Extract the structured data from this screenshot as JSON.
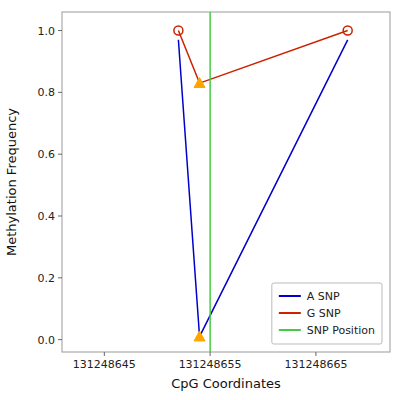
{
  "chart_data": {
    "type": "line",
    "xlabel": "CpG Coordinates",
    "ylabel": "Methylation Frequency",
    "x": [
      131248652,
      131248654,
      131248668
    ],
    "series": [
      {
        "name": "A SNP",
        "color": "#0000CC",
        "values": [
          0.97,
          0.01,
          0.97
        ]
      },
      {
        "name": "G SNP",
        "color": "#CC2200",
        "values": [
          1.0,
          0.83,
          1.0
        ]
      },
      {
        "type": "scatter",
        "color": "#FFA500",
        "marker": "triangle",
        "x": [
          131248654
        ],
        "values": [
          0.01
        ]
      },
      {
        "type": "scatter",
        "color": "#FFA500",
        "marker": "triangle",
        "x": [
          131248654
        ],
        "values": [
          0.83
        ]
      },
      {
        "type": "scatter",
        "color": "#CC2200",
        "marker": "open-circle",
        "x": [
          131248652,
          131248668
        ],
        "values": [
          1.0,
          1.0
        ]
      },
      {
        "name": "SNP Position",
        "type": "vline",
        "color": "#44CC44",
        "x": [
          131248655
        ]
      }
    ],
    "xlim": [
      131248641,
      131248672
    ],
    "ylim": [
      -0.04,
      1.06
    ],
    "xticks": [
      131248645,
      131248655,
      131248665
    ],
    "yticks": [
      {
        "value": 0.0,
        "label": "0.0"
      },
      0.2,
      0.4,
      0.6,
      0.8,
      {
        "value": 1.0,
        "label": "1.0"
      }
    ],
    "legend": "lower right"
  }
}
